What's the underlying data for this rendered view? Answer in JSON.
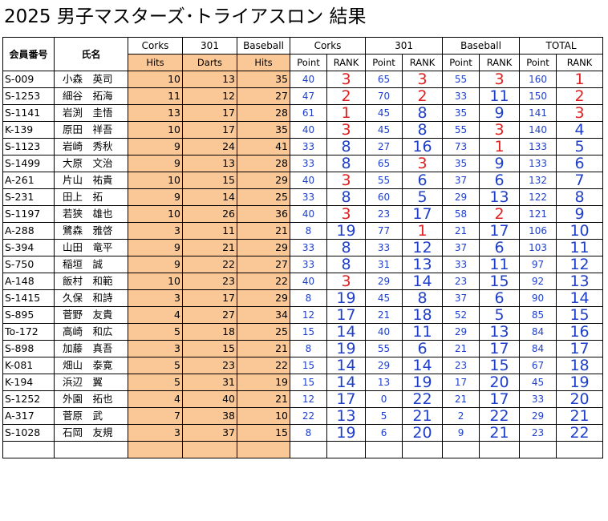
{
  "title": "2025 男子マスターズ･トライアスロン 結果",
  "headers": {
    "member_no": "会員番号",
    "name": "氏名",
    "corks": "Corks",
    "darts301": "301",
    "baseball": "Baseball",
    "total": "TOTAL",
    "hits": "Hits",
    "darts": "Darts",
    "point": "Point",
    "rank": "RANK"
  },
  "colors": {
    "rank_top3": "#e02020",
    "score_blue": "#1f3fc9",
    "raw_highlight": "#f9c896"
  },
  "rows": [
    {
      "id": "S-009",
      "name": "小森　英司",
      "corks_hits": "10",
      "darts_301": "13",
      "baseball_hits": "35",
      "corks_point": "40",
      "corks_rank": "3",
      "d301_point": "65",
      "d301_rank": "3",
      "bb_point": "55",
      "bb_rank": "3",
      "total_point": "160",
      "total_rank": "1"
    },
    {
      "id": "S-1253",
      "name": "細谷　拓海",
      "corks_hits": "11",
      "darts_301": "12",
      "baseball_hits": "27",
      "corks_point": "47",
      "corks_rank": "2",
      "d301_point": "70",
      "d301_rank": "2",
      "bb_point": "33",
      "bb_rank": "11",
      "total_point": "150",
      "total_rank": "2"
    },
    {
      "id": "S-1141",
      "name": "岩渕　圭悟",
      "corks_hits": "13",
      "darts_301": "17",
      "baseball_hits": "28",
      "corks_point": "61",
      "corks_rank": "1",
      "d301_point": "45",
      "d301_rank": "8",
      "bb_point": "35",
      "bb_rank": "9",
      "total_point": "141",
      "total_rank": "3"
    },
    {
      "id": "K-139",
      "name": "原田　祥吾",
      "corks_hits": "10",
      "darts_301": "17",
      "baseball_hits": "35",
      "corks_point": "40",
      "corks_rank": "3",
      "d301_point": "45",
      "d301_rank": "8",
      "bb_point": "55",
      "bb_rank": "3",
      "total_point": "140",
      "total_rank": "4"
    },
    {
      "id": "S-1123",
      "name": "岩崎　秀秋",
      "corks_hits": "9",
      "darts_301": "24",
      "baseball_hits": "41",
      "corks_point": "33",
      "corks_rank": "8",
      "d301_point": "27",
      "d301_rank": "16",
      "bb_point": "73",
      "bb_rank": "1",
      "total_point": "133",
      "total_rank": "5"
    },
    {
      "id": "S-1499",
      "name": "大原　文治",
      "corks_hits": "9",
      "darts_301": "13",
      "baseball_hits": "28",
      "corks_point": "33",
      "corks_rank": "8",
      "d301_point": "65",
      "d301_rank": "3",
      "bb_point": "35",
      "bb_rank": "9",
      "total_point": "133",
      "total_rank": "6"
    },
    {
      "id": "A-261",
      "name": "片山　祐貴",
      "corks_hits": "10",
      "darts_301": "15",
      "baseball_hits": "29",
      "corks_point": "40",
      "corks_rank": "3",
      "d301_point": "55",
      "d301_rank": "6",
      "bb_point": "37",
      "bb_rank": "6",
      "total_point": "132",
      "total_rank": "7"
    },
    {
      "id": "S-231",
      "name": "田上　拓",
      "corks_hits": "9",
      "darts_301": "14",
      "baseball_hits": "25",
      "corks_point": "33",
      "corks_rank": "8",
      "d301_point": "60",
      "d301_rank": "5",
      "bb_point": "29",
      "bb_rank": "13",
      "total_point": "122",
      "total_rank": "8"
    },
    {
      "id": "S-1197",
      "name": "若狭　雄也",
      "corks_hits": "10",
      "darts_301": "26",
      "baseball_hits": "36",
      "corks_point": "40",
      "corks_rank": "3",
      "d301_point": "23",
      "d301_rank": "17",
      "bb_point": "58",
      "bb_rank": "2",
      "total_point": "121",
      "total_rank": "9"
    },
    {
      "id": "A-288",
      "name": "鷺森　雅啓",
      "corks_hits": "3",
      "darts_301": "11",
      "baseball_hits": "21",
      "corks_point": "8",
      "corks_rank": "19",
      "d301_point": "77",
      "d301_rank": "1",
      "bb_point": "21",
      "bb_rank": "17",
      "total_point": "106",
      "total_rank": "10"
    },
    {
      "id": "S-394",
      "name": "山田　竜平",
      "corks_hits": "9",
      "darts_301": "21",
      "baseball_hits": "29",
      "corks_point": "33",
      "corks_rank": "8",
      "d301_point": "33",
      "d301_rank": "12",
      "bb_point": "37",
      "bb_rank": "6",
      "total_point": "103",
      "total_rank": "11"
    },
    {
      "id": "S-750",
      "name": "稲垣　誠",
      "corks_hits": "9",
      "darts_301": "22",
      "baseball_hits": "27",
      "corks_point": "33",
      "corks_rank": "8",
      "d301_point": "31",
      "d301_rank": "13",
      "bb_point": "33",
      "bb_rank": "11",
      "total_point": "97",
      "total_rank": "12"
    },
    {
      "id": "A-148",
      "name": "飯村　和範",
      "corks_hits": "10",
      "darts_301": "23",
      "baseball_hits": "22",
      "corks_point": "40",
      "corks_rank": "3",
      "d301_point": "29",
      "d301_rank": "14",
      "bb_point": "23",
      "bb_rank": "15",
      "total_point": "92",
      "total_rank": "13"
    },
    {
      "id": "S-1415",
      "name": "久保　和詩",
      "corks_hits": "3",
      "darts_301": "17",
      "baseball_hits": "29",
      "corks_point": "8",
      "corks_rank": "19",
      "d301_point": "45",
      "d301_rank": "8",
      "bb_point": "37",
      "bb_rank": "6",
      "total_point": "90",
      "total_rank": "14"
    },
    {
      "id": "S-895",
      "name": "菅野　友貴",
      "corks_hits": "4",
      "darts_301": "27",
      "baseball_hits": "34",
      "corks_point": "12",
      "corks_rank": "17",
      "d301_point": "21",
      "d301_rank": "18",
      "bb_point": "52",
      "bb_rank": "5",
      "total_point": "85",
      "total_rank": "15"
    },
    {
      "id": "To-172",
      "name": "高崎　和広",
      "corks_hits": "5",
      "darts_301": "18",
      "baseball_hits": "25",
      "corks_point": "15",
      "corks_rank": "14",
      "d301_point": "40",
      "d301_rank": "11",
      "bb_point": "29",
      "bb_rank": "13",
      "total_point": "84",
      "total_rank": "16"
    },
    {
      "id": "S-898",
      "name": "加藤　真吾",
      "corks_hits": "3",
      "darts_301": "15",
      "baseball_hits": "21",
      "corks_point": "8",
      "corks_rank": "19",
      "d301_point": "55",
      "d301_rank": "6",
      "bb_point": "21",
      "bb_rank": "17",
      "total_point": "84",
      "total_rank": "17"
    },
    {
      "id": "K-081",
      "name": "畑山　泰寛",
      "corks_hits": "5",
      "darts_301": "23",
      "baseball_hits": "22",
      "corks_point": "15",
      "corks_rank": "14",
      "d301_point": "29",
      "d301_rank": "14",
      "bb_point": "23",
      "bb_rank": "15",
      "total_point": "67",
      "total_rank": "18"
    },
    {
      "id": "K-194",
      "name": "浜辺　翼",
      "corks_hits": "5",
      "darts_301": "31",
      "baseball_hits": "19",
      "corks_point": "15",
      "corks_rank": "14",
      "d301_point": "13",
      "d301_rank": "19",
      "bb_point": "17",
      "bb_rank": "20",
      "total_point": "45",
      "total_rank": "19"
    },
    {
      "id": "S-1252",
      "name": "外園　拓也",
      "corks_hits": "4",
      "darts_301": "40",
      "baseball_hits": "21",
      "corks_point": "12",
      "corks_rank": "17",
      "d301_point": "0",
      "d301_rank": "22",
      "bb_point": "21",
      "bb_rank": "17",
      "total_point": "33",
      "total_rank": "20"
    },
    {
      "id": "A-317",
      "name": "菅原　武",
      "corks_hits": "7",
      "darts_301": "38",
      "baseball_hits": "10",
      "corks_point": "22",
      "corks_rank": "13",
      "d301_point": "5",
      "d301_rank": "21",
      "bb_point": "2",
      "bb_rank": "22",
      "total_point": "29",
      "total_rank": "21"
    },
    {
      "id": "S-1028",
      "name": "石岡　友規",
      "corks_hits": "3",
      "darts_301": "37",
      "baseball_hits": "15",
      "corks_point": "8",
      "corks_rank": "19",
      "d301_point": "6",
      "d301_rank": "20",
      "bb_point": "9",
      "bb_rank": "21",
      "total_point": "23",
      "total_rank": "22"
    }
  ]
}
